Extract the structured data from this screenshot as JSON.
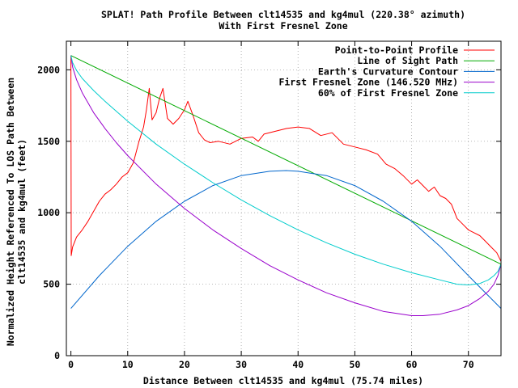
{
  "chart_data": {
    "type": "line",
    "title": "SPLAT! Path Profile Between clt14535 and kg4mul (220.38° azimuth)",
    "subtitle": "With First Fresnel Zone",
    "xlabel": "Distance Between clt14535 and kg4mul (75.74 miles)",
    "ylabel": "Normalized Height Referenced To LOS Path Between",
    "ylabel2": "clt14535 and kg4mul (feet)",
    "xlim": [
      -0.8,
      75.74
    ],
    "ylim": [
      0,
      2200
    ],
    "x_ticks": [
      0,
      10,
      20,
      30,
      40,
      50,
      60,
      70
    ],
    "y_ticks": [
      0,
      500,
      1000,
      1500,
      2000
    ],
    "grid": true,
    "legend_position": "top-right",
    "series": [
      {
        "name": "Point-to-Point Profile",
        "color": "#ff0000",
        "x": [
          0,
          0.05,
          0.3,
          1,
          2,
          3,
          4,
          5,
          6,
          7,
          8,
          9,
          10,
          11,
          12,
          12.8,
          13.3,
          13.8,
          14.3,
          15,
          15.6,
          16.2,
          17,
          18,
          19,
          20,
          20.6,
          21.5,
          22.5,
          23.5,
          24.5,
          26,
          28,
          30,
          32,
          33,
          34,
          36,
          38,
          40,
          42,
          44,
          46,
          48,
          50,
          52,
          54,
          55.5,
          57,
          58.5,
          60,
          61,
          62,
          63,
          64,
          65,
          66,
          67,
          68,
          69,
          70,
          71,
          72,
          73,
          74,
          75,
          75.74
        ],
        "y": [
          2100,
          700,
          760,
          830,
          880,
          940,
          1010,
          1080,
          1130,
          1160,
          1200,
          1250,
          1280,
          1350,
          1500,
          1600,
          1720,
          1870,
          1650,
          1700,
          1800,
          1870,
          1660,
          1620,
          1660,
          1720,
          1780,
          1680,
          1560,
          1510,
          1490,
          1500,
          1480,
          1520,
          1530,
          1500,
          1550,
          1570,
          1590,
          1600,
          1590,
          1540,
          1560,
          1480,
          1460,
          1440,
          1410,
          1340,
          1310,
          1260,
          1200,
          1230,
          1190,
          1150,
          1180,
          1120,
          1100,
          1060,
          960,
          920,
          880,
          860,
          840,
          800,
          760,
          720,
          660
        ]
      },
      {
        "name": "Line of Sight Path",
        "color": "#00aa00",
        "x": [
          0,
          75.74
        ],
        "y": [
          2100,
          640
        ]
      },
      {
        "name": "Earth's Curvature Contour",
        "color": "#0066cc",
        "x": [
          0,
          5,
          10,
          15,
          20,
          25,
          30,
          35,
          37.9,
          40,
          45,
          50,
          55,
          60,
          65,
          70,
          75.74
        ],
        "y": [
          330,
          560,
          765,
          940,
          1080,
          1190,
          1260,
          1290,
          1295,
          1290,
          1260,
          1190,
          1080,
          940,
          765,
          560,
          330
        ]
      },
      {
        "name": "First Fresnel Zone (146.520 MHz)",
        "color": "#9900cc",
        "x": [
          0,
          0.3,
          1,
          2,
          4,
          6,
          8,
          10,
          15,
          20,
          25,
          30,
          35,
          40,
          45,
          50,
          55,
          60,
          62,
          65,
          68,
          70,
          72,
          73.5,
          74.5,
          75.2,
          75.74
        ],
        "y": [
          2100,
          2020,
          1930,
          1840,
          1700,
          1590,
          1490,
          1400,
          1200,
          1030,
          880,
          750,
          630,
          530,
          440,
          370,
          310,
          280,
          280,
          290,
          320,
          350,
          400,
          450,
          500,
          560,
          640
        ]
      },
      {
        "name": "60% of First Fresnel Zone",
        "color": "#00cccc",
        "x": [
          0,
          0.3,
          1,
          2,
          4,
          6,
          8,
          10,
          15,
          20,
          25,
          30,
          35,
          40,
          45,
          50,
          55,
          60,
          65,
          68,
          70,
          72,
          73.5,
          74.5,
          75.2,
          75.74
        ],
        "y": [
          2100,
          2050,
          1995,
          1940,
          1855,
          1780,
          1710,
          1640,
          1480,
          1340,
          1210,
          1090,
          980,
          880,
          790,
          710,
          640,
          580,
          530,
          500,
          495,
          505,
          530,
          560,
          590,
          640
        ]
      }
    ]
  }
}
